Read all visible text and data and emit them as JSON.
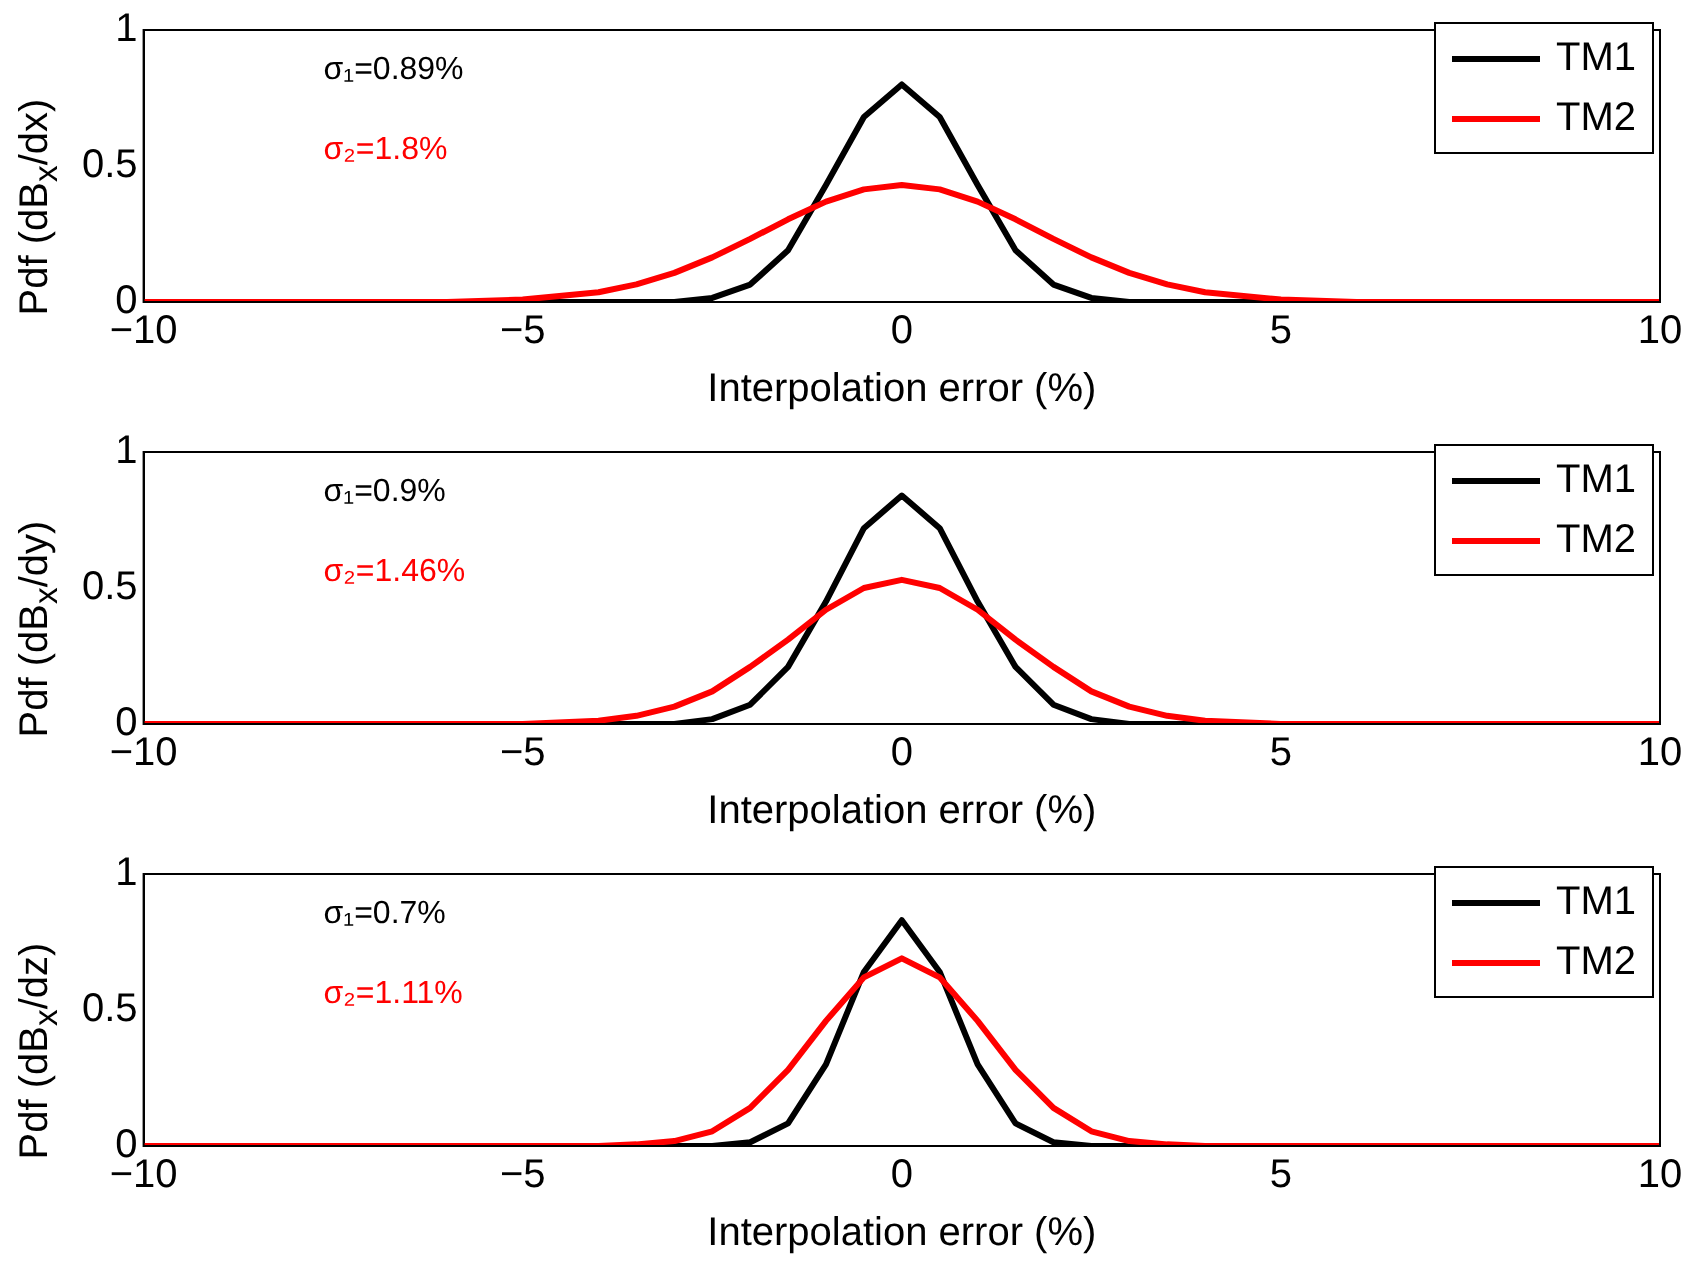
{
  "chart_data": [
    {
      "type": "line",
      "xlabel": "Interpolation error (%)",
      "ylabel": "Pdf (dB$_{x}$/dx)",
      "x": [
        -10,
        -6,
        -5,
        -4,
        -3.5,
        -3,
        -2.5,
        -2,
        -1.5,
        -1,
        -0.5,
        0,
        0.5,
        1,
        1.5,
        2,
        2.5,
        3,
        3.5,
        4,
        5,
        6,
        10
      ],
      "xlim": [
        -10,
        10
      ],
      "xticks": [
        -10,
        -5,
        0,
        5,
        10
      ],
      "ylim": [
        0,
        1
      ],
      "yticks": [
        0,
        0.5,
        1
      ],
      "grid": false,
      "legend": "top right",
      "marker": "none",
      "line_style": "solid",
      "annotations": [
        "σ₁=0.89%",
        "σ₂=1.8%"
      ],
      "series": [
        {
          "name": "TM1",
          "color": "#000000",
          "values": [
            0,
            0,
            0,
            0,
            0,
            0,
            0.015,
            0.064,
            0.19,
            0.43,
            0.68,
            0.8,
            0.68,
            0.43,
            0.19,
            0.064,
            0.015,
            0,
            0,
            0,
            0,
            0,
            0
          ]
        },
        {
          "name": "TM2",
          "color": "#ff0000",
          "values": [
            0,
            0,
            0.009,
            0.036,
            0.065,
            0.107,
            0.164,
            0.232,
            0.304,
            0.369,
            0.414,
            0.43,
            0.414,
            0.369,
            0.304,
            0.232,
            0.164,
            0.107,
            0.065,
            0.036,
            0.009,
            0,
            0
          ]
        }
      ]
    },
    {
      "type": "line",
      "xlabel": "Interpolation error (%)",
      "ylabel": "Pdf (dB$_{x}$/dy)",
      "x": [
        -10,
        -6,
        -5,
        -4,
        -3.5,
        -3,
        -2.5,
        -2,
        -1.5,
        -1,
        -0.5,
        0,
        0.5,
        1,
        1.5,
        2,
        2.5,
        3,
        3.5,
        4,
        5,
        6,
        10
      ],
      "xlim": [
        -10,
        10
      ],
      "xticks": [
        -10,
        -5,
        0,
        5,
        10
      ],
      "ylim": [
        0,
        1
      ],
      "yticks": [
        0,
        0.5,
        1
      ],
      "grid": false,
      "legend": "top right",
      "marker": "none",
      "line_style": "solid",
      "annotations": [
        "σ₁=0.9%",
        "σ₂=1.46%"
      ],
      "series": [
        {
          "name": "TM1",
          "color": "#000000",
          "values": [
            0,
            0,
            0,
            0,
            0,
            0,
            0.018,
            0.071,
            0.21,
            0.45,
            0.72,
            0.84,
            0.72,
            0.45,
            0.21,
            0.071,
            0.018,
            0,
            0,
            0,
            0,
            0,
            0
          ]
        },
        {
          "name": "TM2",
          "color": "#ff0000",
          "values": [
            0,
            0,
            0,
            0.012,
            0.03,
            0.064,
            0.12,
            0.21,
            0.31,
            0.42,
            0.5,
            0.53,
            0.5,
            0.42,
            0.31,
            0.21,
            0.12,
            0.064,
            0.03,
            0.012,
            0,
            0,
            0
          ]
        }
      ]
    },
    {
      "type": "line",
      "xlabel": "Interpolation error (%)",
      "ylabel": "Pdf (dB$_{x}$/dz)",
      "x": [
        -10,
        -6,
        -5,
        -4,
        -3.5,
        -3,
        -2.5,
        -2,
        -1.5,
        -1,
        -0.5,
        0,
        0.5,
        1,
        1.5,
        2,
        2.5,
        3,
        3.5,
        4,
        5,
        6,
        10
      ],
      "xlim": [
        -10,
        10
      ],
      "xticks": [
        -10,
        -5,
        0,
        5,
        10
      ],
      "ylim": [
        0,
        1
      ],
      "yticks": [
        0,
        0.5,
        1
      ],
      "grid": false,
      "legend": "top right",
      "marker": "none",
      "line_style": "solid",
      "annotations": [
        "σ₁=0.7%",
        "σ₂=1.11%"
      ],
      "series": [
        {
          "name": "TM1",
          "color": "#000000",
          "values": [
            0,
            0,
            0,
            0,
            0,
            0,
            0,
            0.014,
            0.083,
            0.3,
            0.64,
            0.83,
            0.64,
            0.3,
            0.083,
            0.014,
            0,
            0,
            0,
            0,
            0,
            0,
            0
          ]
        },
        {
          "name": "TM2",
          "color": "#ff0000",
          "values": [
            0,
            0,
            0,
            0,
            0.006,
            0.018,
            0.054,
            0.14,
            0.28,
            0.46,
            0.62,
            0.69,
            0.62,
            0.46,
            0.28,
            0.14,
            0.054,
            0.018,
            0.006,
            0,
            0,
            0,
            0
          ]
        }
      ]
    }
  ]
}
